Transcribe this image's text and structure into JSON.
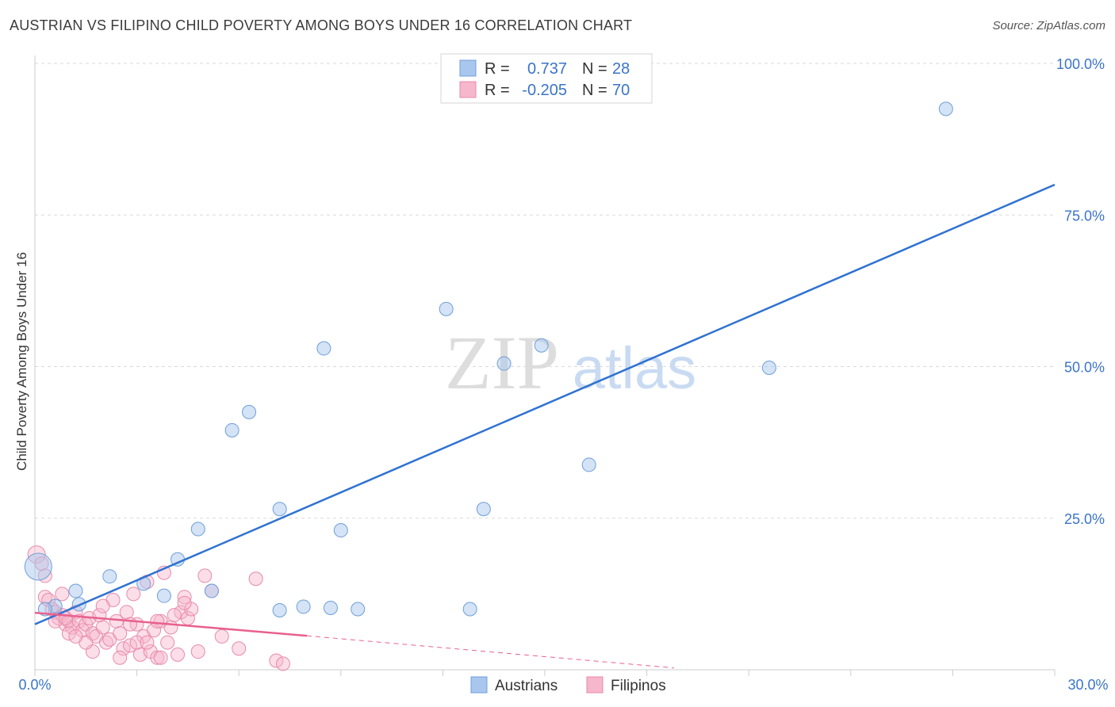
{
  "title": "AUSTRIAN VS FILIPINO CHILD POVERTY AMONG BOYS UNDER 16 CORRELATION CHART",
  "source": "Source: ZipAtlas.com",
  "watermark": {
    "zip": "ZIP",
    "atlas": "atlas"
  },
  "colors": {
    "blue_fill": "#a9c7ee",
    "blue_stroke": "#6e9fd8",
    "blue_line": "#2f72d1",
    "pink_fill": "#f6b6cb",
    "pink_stroke": "#e88aa9",
    "pink_line": "#e8608e",
    "value_text": "#3a74c8",
    "grid": "#d9d9d9"
  },
  "legend": [
    {
      "r_label": "R =",
      "r_value": "0.737",
      "n_label": "N =",
      "n_value": "28"
    },
    {
      "r_label": "R =",
      "r_value": "-0.205",
      "n_label": "N =",
      "n_value": "70"
    }
  ],
  "chart_data": {
    "type": "scatter",
    "title": "AUSTRIAN VS FILIPINO CHILD POVERTY AMONG BOYS UNDER 16 CORRELATION CHART",
    "xlabel": "",
    "ylabel": "Child Poverty Among Boys Under 16",
    "xlim": [
      0,
      30
    ],
    "ylim": [
      0,
      100
    ],
    "x_tick_labels": [
      "0.0%",
      "30.0%"
    ],
    "y_ticks": [
      25,
      50,
      75,
      100
    ],
    "y_tick_labels": [
      "25.0%",
      "50.0%",
      "75.0%",
      "100.0%"
    ],
    "grid": true,
    "legend_position": "bottom-center",
    "series": [
      {
        "name": "Austrians",
        "r": 0.737,
        "n": 28,
        "points": [
          [
            0.1,
            17.0
          ],
          [
            0.6,
            10.5
          ],
          [
            1.2,
            13.0
          ],
          [
            1.3,
            10.8
          ],
          [
            2.2,
            15.4
          ],
          [
            3.2,
            14.2
          ],
          [
            3.8,
            12.2
          ],
          [
            4.2,
            18.2
          ],
          [
            4.8,
            23.2
          ],
          [
            5.2,
            13.0
          ],
          [
            5.8,
            39.5
          ],
          [
            6.3,
            42.5
          ],
          [
            7.2,
            26.5
          ],
          [
            7.2,
            9.8
          ],
          [
            7.9,
            10.4
          ],
          [
            8.5,
            53.0
          ],
          [
            8.7,
            10.2
          ],
          [
            9.0,
            23.0
          ],
          [
            9.5,
            10.0
          ],
          [
            12.1,
            59.5
          ],
          [
            12.8,
            10.0
          ],
          [
            13.2,
            26.5
          ],
          [
            13.8,
            50.5
          ],
          [
            14.9,
            53.5
          ],
          [
            16.3,
            33.8
          ],
          [
            21.6,
            49.8
          ],
          [
            26.8,
            92.5
          ],
          [
            0.3,
            10.0
          ]
        ],
        "trend": {
          "x": [
            0,
            30
          ],
          "y": [
            7.5,
            80.0
          ]
        }
      },
      {
        "name": "Filipinos",
        "r": -0.205,
        "n": 70,
        "points": [
          [
            0.05,
            19.0
          ],
          [
            0.2,
            17.5
          ],
          [
            0.3,
            15.5
          ],
          [
            0.3,
            12.0
          ],
          [
            0.4,
            11.5
          ],
          [
            0.5,
            10.0
          ],
          [
            0.6,
            9.5
          ],
          [
            0.7,
            8.5
          ],
          [
            0.8,
            9.0
          ],
          [
            0.9,
            7.5
          ],
          [
            1.0,
            8.0
          ],
          [
            1.1,
            7.0
          ],
          [
            1.2,
            9.5
          ],
          [
            1.3,
            8.0
          ],
          [
            1.4,
            6.5
          ],
          [
            1.5,
            7.5
          ],
          [
            1.6,
            8.5
          ],
          [
            1.7,
            6.0
          ],
          [
            1.8,
            5.5
          ],
          [
            1.9,
            9.0
          ],
          [
            2.0,
            7.0
          ],
          [
            2.1,
            4.5
          ],
          [
            2.2,
            5.0
          ],
          [
            2.3,
            11.5
          ],
          [
            2.4,
            8.0
          ],
          [
            2.5,
            6.0
          ],
          [
            2.6,
            3.5
          ],
          [
            2.7,
            9.5
          ],
          [
            2.8,
            4.0
          ],
          [
            2.9,
            12.5
          ],
          [
            3.0,
            7.5
          ],
          [
            3.1,
            2.5
          ],
          [
            3.2,
            5.5
          ],
          [
            3.3,
            14.5
          ],
          [
            3.4,
            3.0
          ],
          [
            3.5,
            6.5
          ],
          [
            3.6,
            2.0
          ],
          [
            3.7,
            8.0
          ],
          [
            3.8,
            16.0
          ],
          [
            3.9,
            4.5
          ],
          [
            4.0,
            7.0
          ],
          [
            4.2,
            2.5
          ],
          [
            4.3,
            9.5
          ],
          [
            4.4,
            12.0
          ],
          [
            4.5,
            8.5
          ],
          [
            4.6,
            10.0
          ],
          [
            4.8,
            3.0
          ],
          [
            5.0,
            15.5
          ],
          [
            5.2,
            13.0
          ],
          [
            5.5,
            5.5
          ],
          [
            6.0,
            3.5
          ],
          [
            6.5,
            15.0
          ],
          [
            7.1,
            1.5
          ],
          [
            0.8,
            12.5
          ],
          [
            1.0,
            6.0
          ],
          [
            1.7,
            3.0
          ],
          [
            2.5,
            2.0
          ],
          [
            3.0,
            4.5
          ],
          [
            3.6,
            8.0
          ],
          [
            4.1,
            9.0
          ],
          [
            0.6,
            8.0
          ],
          [
            1.5,
            4.5
          ],
          [
            2.0,
            10.5
          ],
          [
            2.8,
            7.5
          ],
          [
            3.3,
            4.5
          ],
          [
            3.7,
            2.0
          ],
          [
            4.4,
            11.0
          ],
          [
            1.2,
            5.5
          ],
          [
            0.9,
            8.5
          ],
          [
            7.3,
            1.0
          ]
        ],
        "trend": {
          "x": [
            0,
            8
          ],
          "y": [
            9.4,
            5.6
          ]
        },
        "trend_extension": {
          "x": [
            8,
            18.8
          ],
          "y": [
            5.6,
            0.3
          ]
        }
      }
    ]
  },
  "bottom_legend": [
    "Austrians",
    "Filipinos"
  ]
}
